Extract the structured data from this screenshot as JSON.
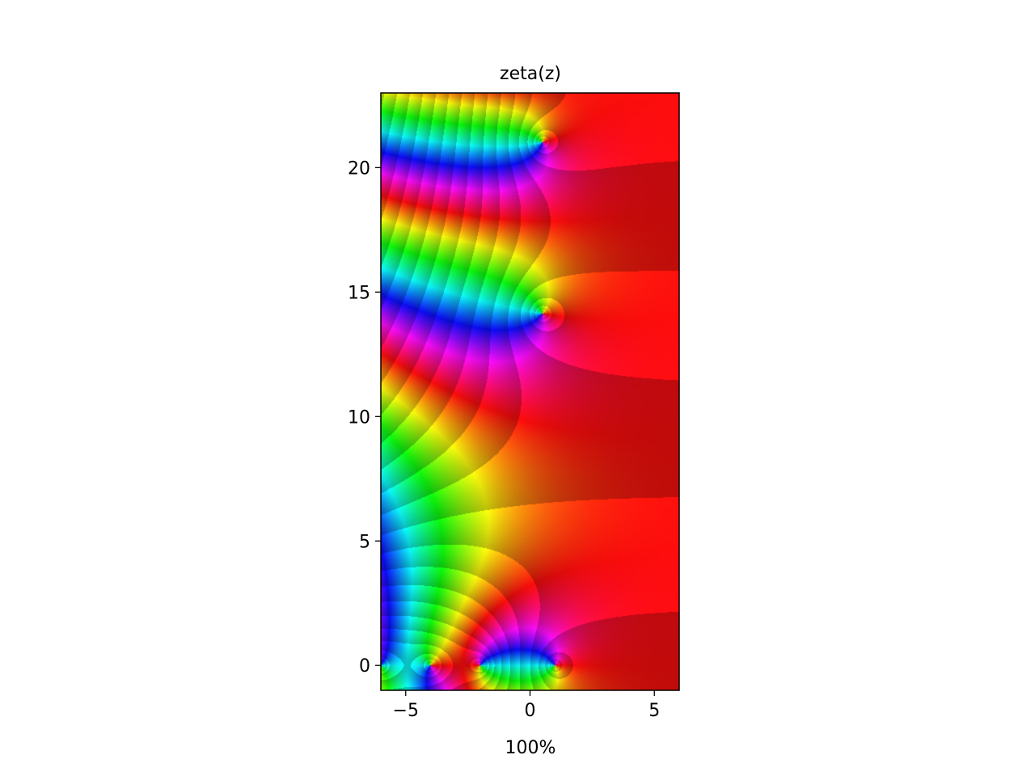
{
  "chart_data": {
    "type": "heatmap",
    "title": "zeta(z)",
    "xlabel": "100%",
    "ylabel": "",
    "xlim": [
      -6,
      6
    ],
    "ylim": [
      -1,
      23
    ],
    "xticks": [
      -5,
      0,
      5
    ],
    "xtick_labels": [
      "−5",
      "0",
      "5"
    ],
    "yticks": [
      0,
      5,
      10,
      15,
      20
    ],
    "ytick_labels": [
      "0",
      "5",
      "10",
      "15",
      "20"
    ],
    "grid": false,
    "colormap": "hsv phase",
    "zeros": [
      {
        "re": 0.5,
        "im": 14.13
      },
      {
        "re": 0.5,
        "im": 21.02
      },
      {
        "re": -2,
        "im": 0
      },
      {
        "re": -4,
        "im": 0
      },
      {
        "re": -6,
        "im": 0
      }
    ],
    "poles": [
      {
        "re": 1,
        "im": 0
      }
    ]
  }
}
